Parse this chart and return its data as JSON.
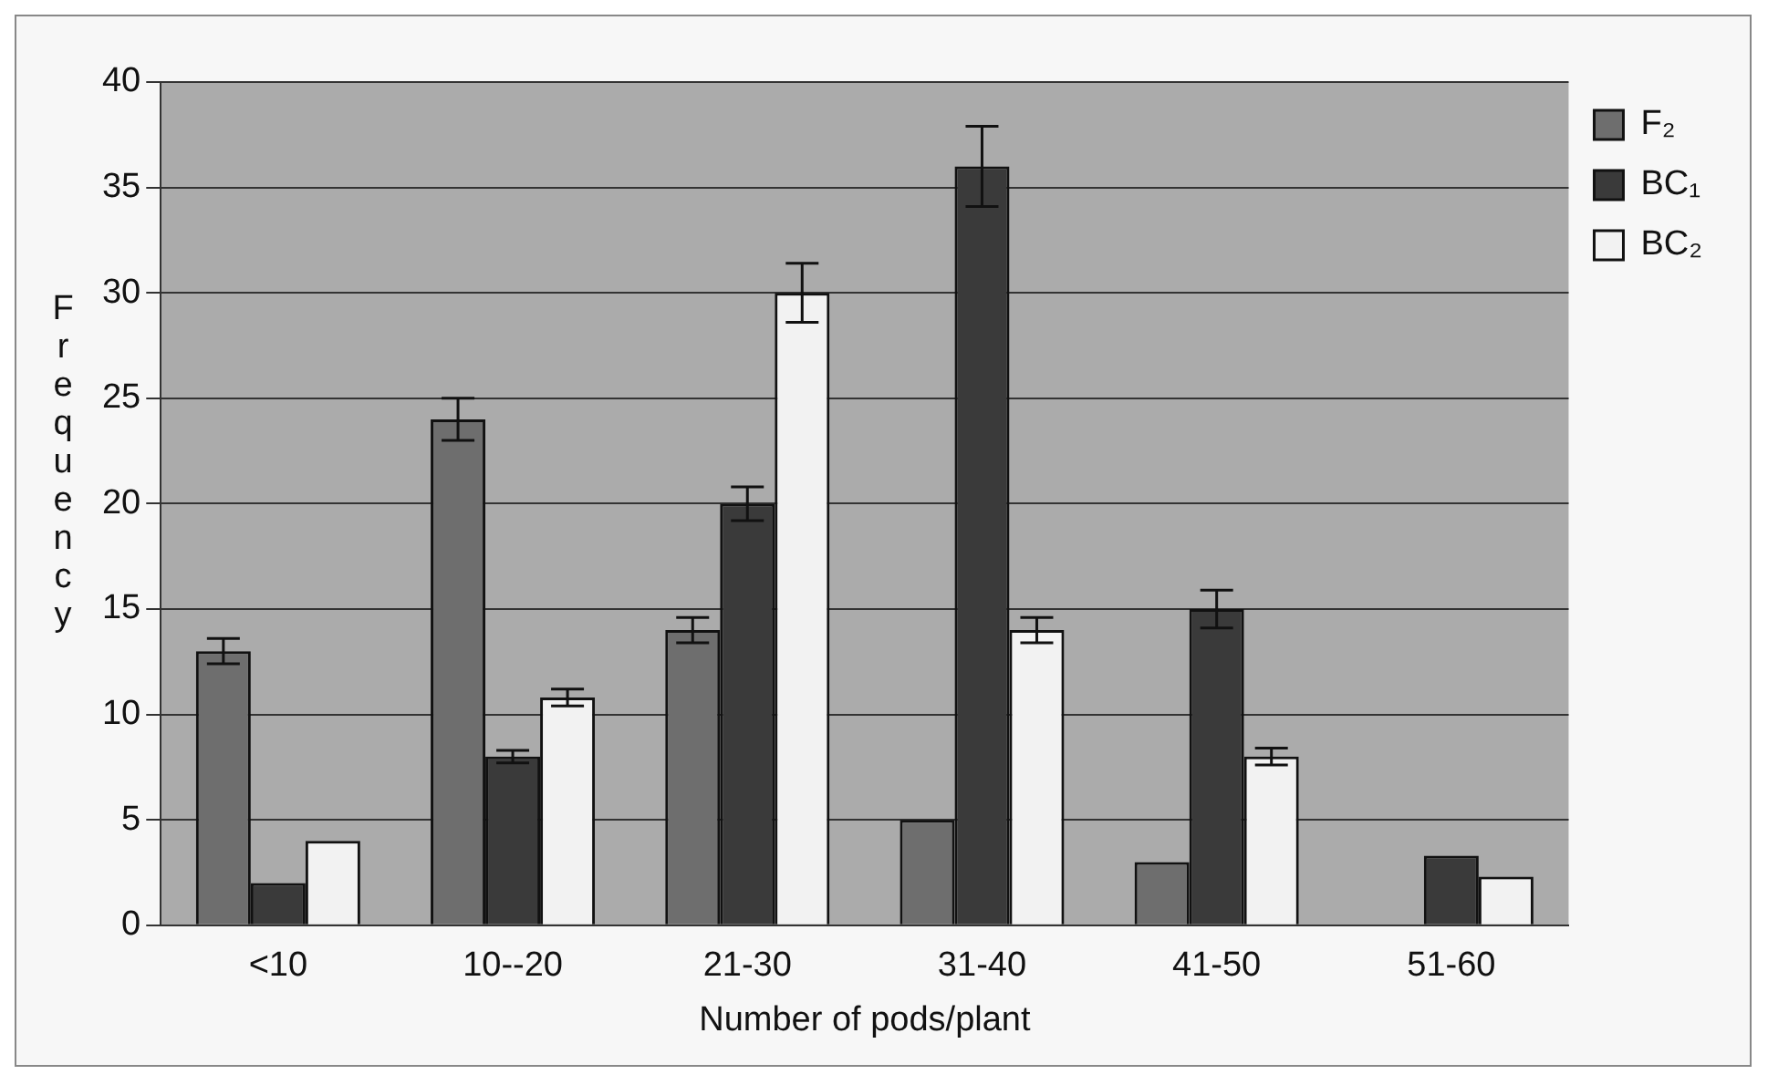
{
  "chart_data": {
    "type": "bar",
    "xlabel": "Number of pods/plant",
    "ylabel": "Frequency",
    "categories": [
      "<10",
      "10--20",
      "21-30",
      "31-40",
      "41-50",
      "51-60"
    ],
    "series": [
      {
        "name": "F₂",
        "color": "#6e6e6e",
        "values": [
          13,
          24,
          14,
          5,
          3,
          0
        ],
        "errors": [
          0.6,
          1,
          0.6,
          null,
          null,
          null
        ]
      },
      {
        "name": "BC₁",
        "color": "#3a3a3a",
        "values": [
          2,
          8,
          20,
          36,
          15,
          3.3
        ],
        "errors": [
          null,
          0.3,
          0.8,
          1.9,
          0.9,
          null
        ]
      },
      {
        "name": "BC₂",
        "color": "#f2f2f2",
        "values": [
          4,
          10.8,
          30,
          14,
          8,
          2.3
        ],
        "errors": [
          null,
          0.4,
          1.4,
          0.6,
          0.4,
          null
        ]
      }
    ],
    "ylim": [
      0,
      40
    ],
    "yticks": [
      0,
      5,
      10,
      15,
      20,
      25,
      30,
      35,
      40
    ],
    "grid": "y",
    "legend": "right"
  }
}
